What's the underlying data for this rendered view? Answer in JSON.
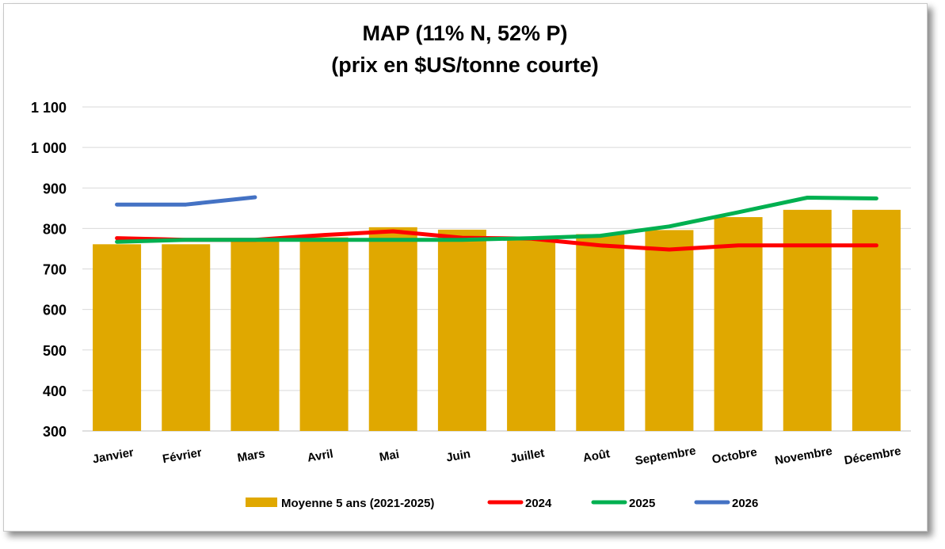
{
  "chart_data": {
    "type": "bar",
    "title": [
      "MAP (11% N, 52% P)",
      "(prix en $US/tonne courte)"
    ],
    "categories": [
      "Janvier",
      "Février",
      "Mars",
      "Avril",
      "Mai",
      "Juin",
      "Juillet",
      "Août",
      "Septembre",
      "Octobre",
      "Novembre",
      "Décembre"
    ],
    "ylim": [
      300,
      1100
    ],
    "yticks": [
      300,
      400,
      500,
      600,
      700,
      800,
      900,
      1000,
      1100
    ],
    "ytick_labels": [
      "300",
      "400",
      "500",
      "600",
      "700",
      "800",
      "900",
      "1 000",
      "1 100"
    ],
    "grid": true,
    "legend_position": "bottom",
    "bar_series": {
      "name": "Moyenne 5 ans (2021-2025)",
      "color": "#E0A800",
      "values": [
        761,
        761,
        773,
        778,
        803,
        797,
        780,
        786,
        796,
        828,
        846,
        846
      ]
    },
    "line_series": [
      {
        "name": "2024",
        "color": "#FF0000",
        "values": [
          776,
          772,
          772,
          784,
          793,
          777,
          775,
          758,
          748,
          758,
          758,
          758
        ]
      },
      {
        "name": "2025",
        "color": "#00B050",
        "values": [
          767,
          772,
          772,
          772,
          772,
          772,
          776,
          782,
          805,
          840,
          876,
          874
        ]
      },
      {
        "name": "2026",
        "color": "#4472C4",
        "values": [
          859,
          859,
          877,
          null,
          null,
          null,
          null,
          null,
          null,
          null,
          null,
          null
        ]
      }
    ]
  }
}
